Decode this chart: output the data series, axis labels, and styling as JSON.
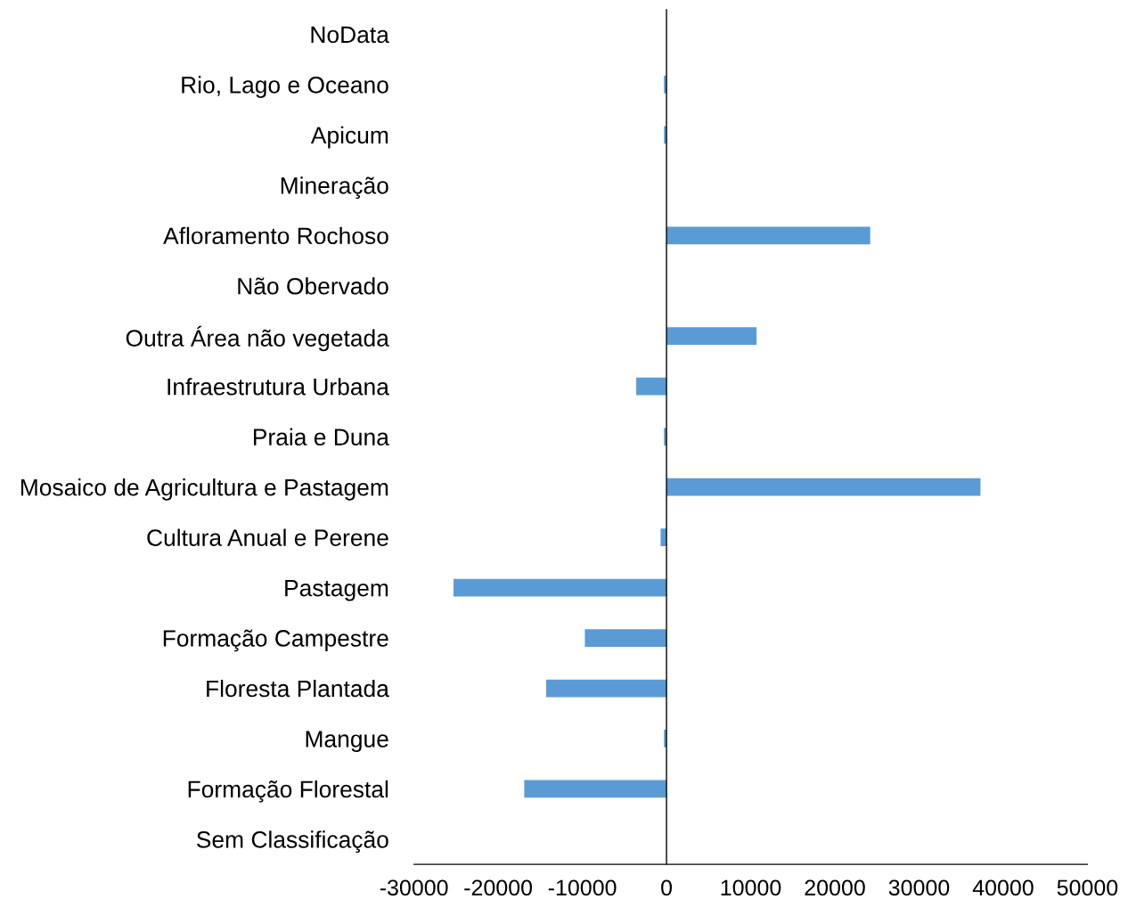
{
  "chart_data": {
    "type": "bar",
    "orientation": "horizontal",
    "categories": [
      "NoData",
      "Rio, Lago e Oceano",
      "Apicum",
      "Mineração",
      "Afloramento Rochoso",
      "Não Obervado",
      "Outra Área não vegetada",
      "Infraestrutura Urbana",
      "Praia e Duna",
      "Mosaico de Agricultura e Pastagem",
      "Cultura Anual e Perene",
      "Pastagem",
      "Formação Campestre",
      "Floresta Plantada",
      "Mangue",
      "Formação Florestal",
      "Sem Classificação"
    ],
    "values": [
      0,
      -300,
      -300,
      0,
      24200,
      0,
      10700,
      -3600,
      -300,
      37300,
      -700,
      -25300,
      -9700,
      -14300,
      -300,
      -16900,
      0
    ],
    "color": "#5b9bd5",
    "xlim": [
      -30000,
      50000
    ],
    "xticks": [
      -30000,
      -20000,
      -10000,
      0,
      10000,
      20000,
      30000,
      40000,
      50000
    ],
    "ref_lines": [
      {
        "axis": "x",
        "value": 0,
        "color": "#000000"
      }
    ],
    "grid": false,
    "legend": false
  }
}
